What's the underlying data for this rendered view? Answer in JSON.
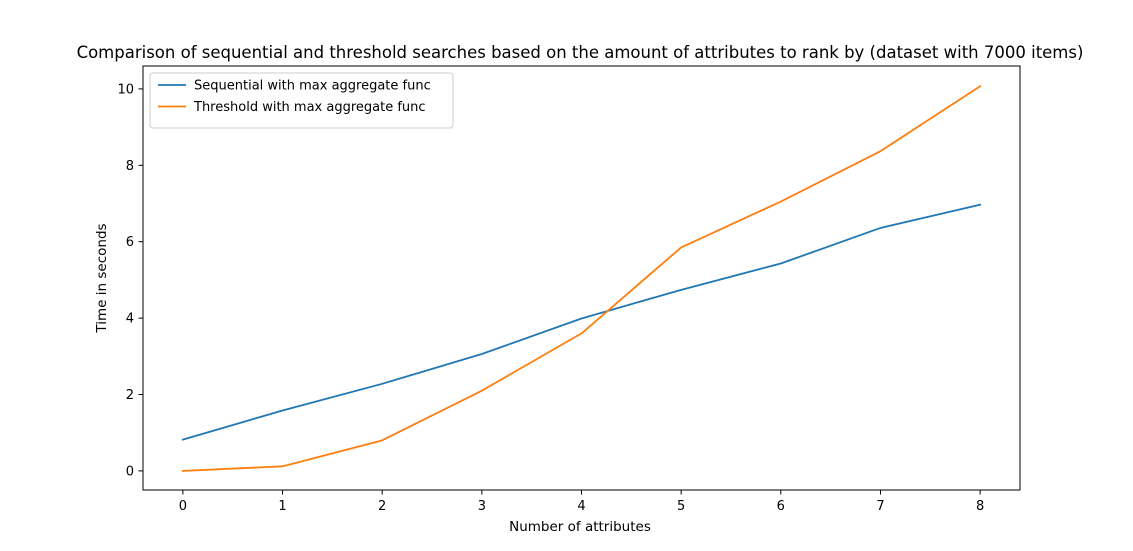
{
  "chart_data": {
    "type": "line",
    "title": "Comparison of sequential and threshold searches based on the amount of attributes to rank by (dataset with 7000 items)",
    "xlabel": "Number of attributes",
    "ylabel": "Time in seconds",
    "x": [
      0,
      1,
      2,
      3,
      4,
      5,
      6,
      7,
      8
    ],
    "xticks": [
      0,
      1,
      2,
      3,
      4,
      5,
      6,
      7,
      8
    ],
    "yticks": [
      0,
      2,
      4,
      6,
      8,
      10
    ],
    "xlim": [
      -0.4,
      8.4
    ],
    "ylim": [
      -0.5,
      10.6
    ],
    "grid": false,
    "legend_position": "top-left",
    "series": [
      {
        "name": "Sequential with max aggregate func",
        "color": "#1f77b4",
        "values": [
          0.82,
          1.58,
          2.28,
          3.06,
          3.99,
          4.74,
          5.43,
          6.36,
          6.97
        ]
      },
      {
        "name": "Threshold with max aggregate func",
        "color": "#ff7f0e",
        "values": [
          0.0,
          0.12,
          0.8,
          2.1,
          3.6,
          5.85,
          7.05,
          8.37,
          10.07
        ]
      }
    ]
  }
}
